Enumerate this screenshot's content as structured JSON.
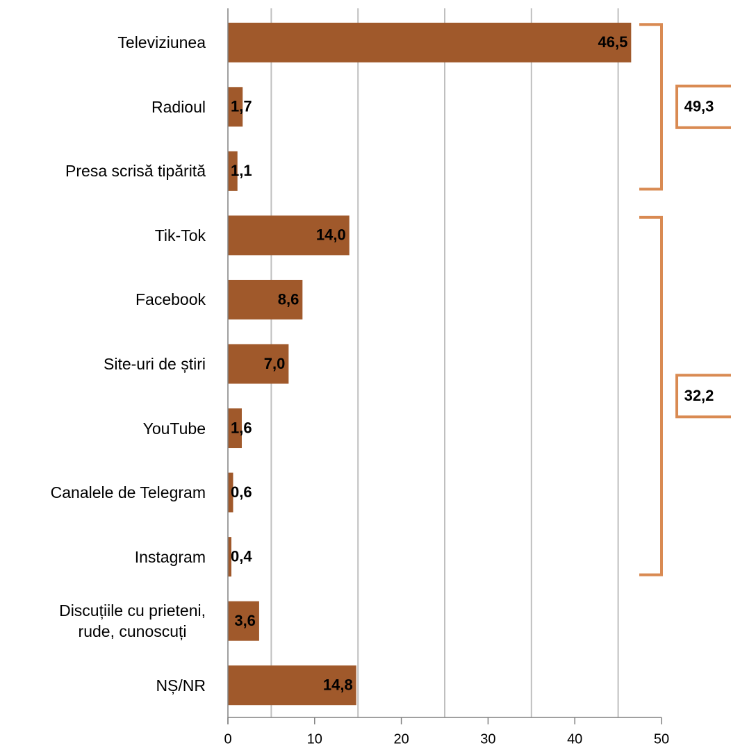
{
  "chart_data": {
    "type": "bar",
    "orientation": "horizontal",
    "categories": [
      "Televiziunea",
      "Radioul",
      "Presa scrisă tipărită",
      "Tik-Tok",
      "Facebook",
      "Site-uri de știri",
      "YouTube",
      "Canalele de Telegram",
      "Instagram",
      "Discuțiile cu prieteni,\nrude, cunoscuți",
      "NȘ/NR"
    ],
    "values": [
      46.5,
      1.7,
      1.1,
      14.0,
      8.6,
      7.0,
      1.6,
      0.6,
      0.4,
      3.6,
      14.8
    ],
    "value_labels": [
      "46,5",
      "1,7",
      "1,1",
      "14,0",
      "8,6",
      "7,0",
      "1,6",
      "0,6",
      "0,4",
      "3,6",
      "14,8"
    ],
    "color": "#a0592b",
    "xlim": [
      0,
      50
    ],
    "xticks": [
      0,
      10,
      20,
      30,
      40,
      50
    ],
    "xgrid": [
      5,
      15,
      25,
      35,
      45
    ],
    "brackets": [
      {
        "value": 49.3,
        "label": "49,3",
        "first": 0,
        "last": 2
      },
      {
        "value": 32.2,
        "label": "32,2",
        "first": 3,
        "last": 8
      }
    ],
    "bracket_color": "#d98a52"
  }
}
